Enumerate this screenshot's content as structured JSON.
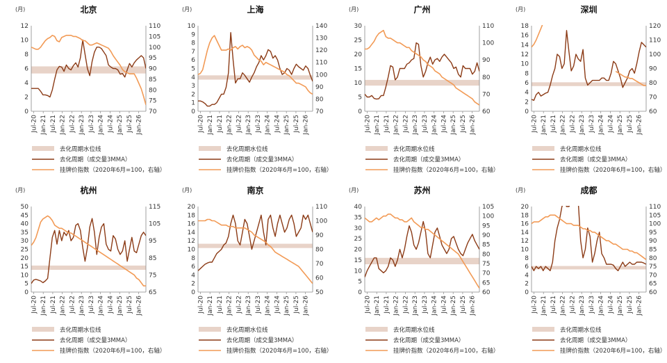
{
  "unit_label": "(月)",
  "x_ticks": [
    "Jul-20",
    "Jan-21",
    "Jul-21",
    "Jan-22",
    "Jul-22",
    "Jan-23",
    "Jul-23",
    "Jan-24",
    "Jul-24",
    "Jan-25",
    "Jul-25",
    "Jan-26"
  ],
  "legend": {
    "band": "去化周期水位线",
    "cycle": "去化周期（成交量3MMA）",
    "price": "挂牌价指数（2020年6月=100，右轴）"
  },
  "colors": {
    "band": "#e8d3c8",
    "cycle": "#8b3a15",
    "price": "#f29a55"
  },
  "chart_data": [
    {
      "type": "line",
      "title": "北京",
      "xlabel": "",
      "ylabel": "",
      "ylim": [
        0,
        12
      ],
      "ylim_right": [
        70,
        110
      ],
      "y_ticks": [
        "0",
        "2",
        "4",
        "6",
        "8",
        "10",
        "12"
      ],
      "y2_ticks": [
        "70",
        "75",
        "80",
        "85",
        "90",
        "95",
        "100",
        "105",
        "110"
      ],
      "band": [
        5.3,
        6.3
      ],
      "series": [
        {
          "name": "去化周期（成交量3MMA）",
          "values": [
            3.2,
            3.2,
            3.2,
            3.2,
            2.8,
            2.3,
            2.3,
            2.2,
            2.0,
            3.0,
            4.5,
            5.8,
            6.3,
            6.2,
            5.6,
            6.5,
            6.0,
            5.8,
            6.4,
            6.8,
            6.2,
            7.5,
            10.0,
            8.0,
            6.0,
            5.0,
            7.0,
            8.3,
            9.0,
            9.0,
            8.8,
            8.3,
            7.8,
            6.5,
            6.2,
            6.0,
            6.0,
            5.8,
            5.2,
            5.3,
            4.8,
            5.8,
            6.7,
            6.2,
            6.8,
            7.2,
            7.5,
            7.8,
            7.5,
            6.0
          ]
        },
        {
          "name": "挂牌价指数（2020年6月=100，右轴）",
          "axis": "right",
          "values": [
            100,
            99.5,
            99,
            99,
            100,
            101.5,
            103,
            104,
            104.5,
            105.5,
            105,
            103,
            102.5,
            104.5,
            105,
            105.5,
            105.5,
            105.5,
            105,
            105,
            104.5,
            104,
            103,
            103,
            102,
            101,
            101,
            101.5,
            102,
            101.5,
            101,
            100.5,
            100,
            99.5,
            98,
            96,
            94.5,
            93,
            91.5,
            89.5,
            88.5,
            88,
            87.5,
            87.5,
            87.5,
            85.5,
            83,
            80.5,
            77,
            73
          ]
        }
      ]
    },
    {
      "type": "line",
      "title": "上海",
      "xlabel": "",
      "ylabel": "",
      "ylim": [
        0,
        10
      ],
      "ylim_right": [
        70,
        140
      ],
      "y_ticks": [
        "0",
        "1",
        "2",
        "3",
        "4",
        "5",
        "6",
        "7",
        "8",
        "9",
        "10"
      ],
      "y2_ticks": [
        "70",
        "80",
        "90",
        "100",
        "110",
        "120",
        "130",
        "140"
      ],
      "band": [
        3.7,
        4.2
      ],
      "series": [
        {
          "name": "去化周期（成交量3MMA）",
          "values": [
            1.2,
            1.2,
            1.1,
            0.9,
            0.6,
            0.6,
            0.8,
            0.8,
            1.0,
            1.5,
            2.0,
            2.0,
            2.8,
            4.5,
            9.2,
            6.0,
            3.3,
            3.8,
            3.8,
            4.5,
            4.2,
            3.8,
            3.4,
            4.0,
            4.5,
            5.2,
            5.7,
            6.5,
            6.0,
            6.5,
            7.2,
            7.0,
            6.2,
            6.5,
            6.0,
            5.0,
            4.3,
            4.5,
            5.0,
            4.8,
            4.3,
            5.0,
            5.5,
            5.2,
            5.0,
            4.8,
            5.3,
            5.0,
            4.2,
            3.5
          ]
        },
        {
          "name": "挂牌价指数（2020年6月=100，右轴）",
          "axis": "right",
          "values": [
            100,
            101,
            104,
            112,
            120,
            126,
            130,
            132,
            128,
            124,
            120,
            120,
            120,
            121,
            120,
            122,
            123,
            121,
            123,
            124,
            122,
            123,
            122,
            120,
            116,
            114,
            112,
            111,
            108,
            110,
            109,
            108,
            107,
            106,
            105,
            104,
            103,
            102,
            100,
            99,
            97,
            95,
            93,
            93,
            92,
            91,
            90,
            87,
            85,
            84
          ]
        }
      ]
    },
    {
      "type": "line",
      "title": "广州",
      "xlabel": "",
      "ylabel": "",
      "ylim": [
        0,
        30
      ],
      "ylim_right": [
        60,
        115
      ],
      "y_ticks": [
        "0",
        "5",
        "10",
        "15",
        "20",
        "25",
        "30"
      ],
      "y2_ticks": [
        "60",
        "70",
        "80",
        "90",
        "100",
        "110"
      ],
      "band": [
        9,
        11
      ],
      "series": [
        {
          "name": "去化周期（成交量3MMA）",
          "values": [
            6,
            5,
            5,
            5.5,
            4.5,
            4.3,
            4.4,
            5.5,
            5.5,
            8.5,
            12,
            16,
            15.5,
            11,
            12,
            15,
            15,
            15,
            16.5,
            17,
            18,
            18.5,
            24,
            23.5,
            16,
            12,
            14,
            17,
            19,
            16.5,
            18,
            18.5,
            17.5,
            19,
            20,
            19,
            18,
            17,
            15,
            15.5,
            13,
            12,
            16,
            15,
            15,
            15,
            13,
            14,
            17,
            14
          ]
        },
        {
          "name": "挂牌价指数（2020年6月=100，右轴）",
          "axis": "right",
          "values": [
            100,
            100,
            101,
            103,
            105,
            108,
            110,
            111,
            112,
            108,
            107,
            107,
            106,
            105,
            104,
            104,
            103,
            102,
            101,
            101,
            99,
            98,
            97,
            96,
            95,
            93,
            92,
            90,
            89,
            88,
            86,
            85,
            84,
            82,
            81,
            80,
            79,
            78,
            77,
            75,
            74,
            73,
            72,
            71,
            70,
            69,
            68,
            66,
            65,
            64
          ]
        }
      ]
    },
    {
      "type": "line",
      "title": "深圳",
      "xlabel": "",
      "ylabel": "",
      "ylim": [
        0,
        18
      ],
      "ylim_right": [
        60,
        120
      ],
      "y_ticks": [
        "0",
        "2",
        "4",
        "6",
        "8",
        "10",
        "12",
        "14",
        "16",
        "18"
      ],
      "y2_ticks": [
        "60",
        "70",
        "80",
        "90",
        "100",
        "110",
        "120"
      ],
      "band": [
        5.3,
        6.1
      ],
      "series": [
        {
          "name": "去化周期（成交量3MMA）",
          "values": [
            2.5,
            2.3,
            3.5,
            4,
            3.2,
            3.5,
            3.8,
            4,
            5.5,
            7.5,
            9,
            12,
            11.5,
            9,
            10,
            17,
            12.5,
            8.5,
            9.5,
            12,
            11,
            10.5,
            13,
            7,
            5.5,
            6,
            6.5,
            6.5,
            6.5,
            6.5,
            7,
            7,
            6.5,
            6.5,
            8,
            10.5,
            10,
            8.5,
            7,
            5,
            6,
            7,
            8.5,
            9,
            8,
            10,
            12.5,
            14.5,
            14,
            13.5
          ]
        },
        {
          "name": "挂牌价指数（2020年6月=100，右轴）",
          "axis": "right",
          "values": [
            105,
            107,
            110,
            114,
            118,
            122,
            null,
            null,
            null,
            null,
            null,
            null,
            null,
            null,
            null,
            null,
            null,
            null,
            null,
            null,
            null,
            null,
            null,
            null,
            null,
            null,
            null,
            null,
            null,
            null,
            null,
            null,
            null,
            null,
            null,
            null,
            88,
            87,
            86,
            85,
            84,
            84,
            83,
            83,
            82,
            81,
            80,
            79,
            78,
            78
          ]
        }
      ]
    },
    {
      "type": "line",
      "title": "杭州",
      "xlabel": "",
      "ylabel": "",
      "ylim": [
        0,
        50
      ],
      "ylim_right": [
        65,
        120
      ],
      "y_ticks": [
        "0",
        "5",
        "10",
        "15",
        "20",
        "25",
        "30",
        "35",
        "40",
        "45",
        "50"
      ],
      "y2_ticks": [
        "65",
        "75",
        "85",
        "95",
        "105",
        "115"
      ],
      "band": [
        13,
        15.5
      ],
      "series": [
        {
          "name": "去化周期（成交量3MMA）",
          "values": [
            5,
            7,
            7.5,
            7,
            6.5,
            5.5,
            6.5,
            8,
            20,
            32,
            36,
            28,
            36,
            30,
            35,
            33,
            36,
            30,
            32,
            39,
            40,
            36,
            26,
            18,
            26,
            38,
            43,
            35,
            22,
            32,
            38,
            40,
            28,
            25,
            24,
            33,
            31,
            25,
            22,
            24,
            30,
            18,
            25,
            32,
            24,
            23,
            28,
            33,
            35,
            33
          ]
        },
        {
          "name": "挂牌价指数（2020年6月=100，右轴）",
          "axis": "right",
          "values": [
            95,
            97,
            100,
            105,
            110,
            112,
            113,
            114,
            113,
            111,
            108,
            107,
            106,
            106,
            105,
            104,
            103,
            103,
            102,
            101,
            100,
            99,
            98,
            97,
            96,
            95,
            94,
            93,
            92,
            91,
            90,
            89,
            88,
            87,
            86,
            85,
            84,
            83,
            82,
            81,
            80,
            79,
            78,
            77,
            76,
            74,
            73,
            71,
            69,
            69
          ]
        }
      ]
    },
    {
      "type": "line",
      "title": "南京",
      "xlabel": "",
      "ylabel": "",
      "ylim": [
        0,
        20
      ],
      "ylim_right": [
        50,
        110
      ],
      "y_ticks": [
        "0",
        "2",
        "4",
        "6",
        "8",
        "10",
        "12",
        "14",
        "16",
        "18",
        "20"
      ],
      "y2_ticks": [
        "50",
        "60",
        "70",
        "80",
        "90",
        "100",
        "110"
      ],
      "band": [
        10.3,
        11.3
      ],
      "series": [
        {
          "name": "去化周期（成交量3MMA）",
          "values": [
            5,
            5.5,
            6,
            6.5,
            6.8,
            7,
            7,
            8,
            9,
            9.5,
            10,
            11,
            11.5,
            13,
            16,
            18,
            16,
            12,
            11,
            14,
            17,
            16,
            13,
            10,
            12,
            14,
            16,
            18,
            14,
            11,
            17,
            18,
            15,
            13,
            16,
            18,
            16,
            14,
            15,
            17,
            18,
            16,
            13,
            14,
            15,
            18,
            17,
            18,
            16,
            14
          ]
        },
        {
          "name": "挂牌价指数（2020年6月=100，右轴）",
          "axis": "right",
          "values": [
            100,
            100,
            100,
            100,
            101,
            101,
            100,
            100,
            99,
            98,
            97,
            97,
            97,
            96,
            96,
            96,
            95,
            95,
            95,
            95,
            95,
            94,
            93,
            92,
            90,
            89,
            88,
            87,
            86,
            85,
            83,
            82,
            80,
            78,
            77,
            76,
            75,
            74,
            73,
            72,
            71,
            70,
            69,
            68,
            66,
            64,
            62,
            60,
            58,
            56
          ]
        }
      ]
    },
    {
      "type": "line",
      "title": "苏州",
      "xlabel": "",
      "ylabel": "",
      "ylim": [
        0,
        40
      ],
      "ylim_right": [
        60,
        105
      ],
      "y_ticks": [
        "0",
        "5",
        "10",
        "15",
        "20",
        "25",
        "30",
        "35",
        "40"
      ],
      "y2_ticks": [
        "60",
        "65",
        "70",
        "75",
        "80",
        "85",
        "90",
        "95",
        "100",
        "105"
      ],
      "band": [
        13,
        16
      ],
      "series": [
        {
          "name": "去化周期（成交量3MMA）",
          "values": [
            7,
            10,
            12,
            14,
            16,
            16,
            11,
            10,
            9,
            10,
            12,
            16,
            15,
            12,
            15,
            20,
            16,
            20,
            26,
            31,
            28,
            22,
            20,
            23,
            28,
            33,
            28,
            18,
            16,
            22,
            28,
            30,
            26,
            22,
            20,
            18,
            20,
            25,
            26,
            23,
            20,
            18,
            17,
            20,
            23,
            25,
            27,
            24,
            22,
            20
          ]
        },
        {
          "name": "挂牌价指数（2020年6月=100，右轴）",
          "axis": "right",
          "values": [
            99,
            98,
            97,
            97,
            98,
            99,
            98,
            99,
            100,
            100,
            101,
            101,
            100,
            99,
            99,
            98,
            98,
            97,
            97,
            98,
            99,
            97,
            96,
            95,
            94,
            94,
            93,
            93,
            92,
            91,
            90,
            89,
            88,
            87,
            86,
            85,
            84,
            83,
            82,
            81,
            80,
            78,
            76,
            74,
            72,
            70,
            68,
            66,
            64,
            62
          ]
        }
      ]
    },
    {
      "type": "line",
      "title": "成都",
      "xlabel": "",
      "ylabel": "",
      "ylim": [
        0,
        20
      ],
      "ylim_right": [
        60,
        110
      ],
      "y_ticks": [
        "0",
        "2",
        "4",
        "6",
        "8",
        "10",
        "12",
        "14",
        "16",
        "18",
        "20"
      ],
      "y2_ticks": [
        "60",
        "65",
        "70",
        "75",
        "80",
        "85",
        "90",
        "95",
        "100",
        "105",
        "110"
      ],
      "band": [
        5.3,
        6.1
      ],
      "series": [
        {
          "name": "去化周期（成交量3MMA）",
          "values": [
            6,
            5,
            6,
            5.5,
            6,
            5,
            6,
            5.5,
            5,
            7,
            12,
            15,
            17,
            20,
            21,
            20,
            20,
            21,
            21,
            21,
            21,
            12,
            8,
            10,
            15,
            13,
            7,
            9,
            12,
            14,
            9,
            8,
            6.5,
            6.5,
            6.5,
            6.3,
            5.5,
            5,
            6,
            7,
            6,
            6.5,
            7,
            6.5,
            6.5,
            7,
            7,
            7,
            6.8,
            6.5
          ]
        },
        {
          "name": "挂牌价指数（2020年6月=100，右轴）",
          "axis": "right",
          "values": [
            100,
            101,
            101,
            101,
            102,
            103,
            104,
            104,
            105,
            105,
            105,
            104,
            103,
            102,
            101,
            100,
            100,
            100,
            99,
            99,
            99,
            98,
            97,
            97,
            96,
            96,
            95,
            95,
            94,
            93,
            92,
            91,
            90,
            90,
            89,
            88,
            88,
            87,
            86,
            85,
            85,
            85,
            84,
            84,
            83,
            83,
            82,
            81,
            80,
            79
          ]
        }
      ]
    }
  ]
}
